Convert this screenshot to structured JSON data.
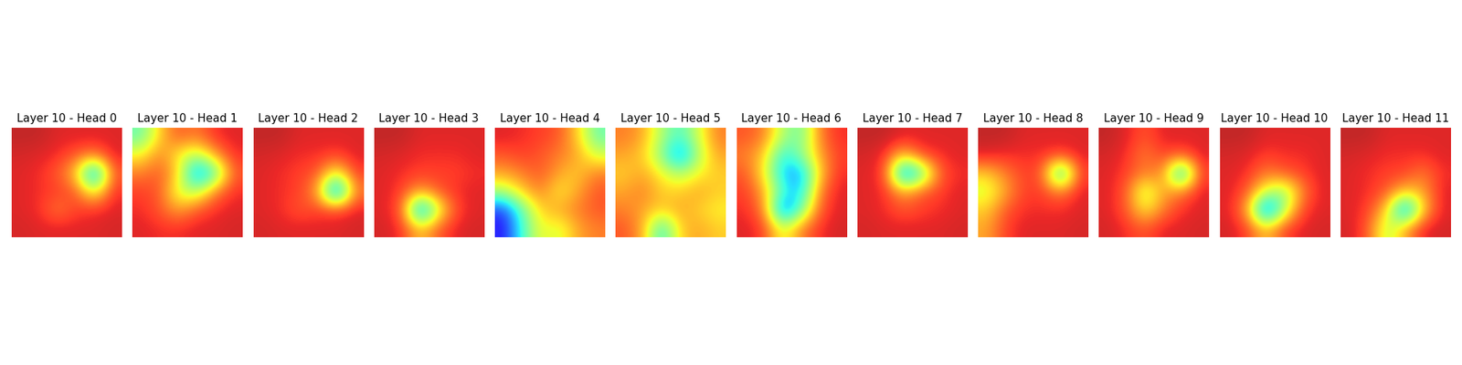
{
  "chart_data": {
    "type": "heatmap",
    "tick_labels": false,
    "color_range": [
      0,
      1
    ],
    "panels": [
      {
        "title": "Layer 10 - Head 0",
        "cells": [
          [
            0.95,
            0.95,
            0.92,
            0.92,
            0.92,
            0.92
          ],
          [
            0.93,
            0.92,
            0.9,
            0.85,
            0.8,
            0.92
          ],
          [
            0.92,
            0.9,
            0.85,
            0.7,
            0.15,
            0.85
          ],
          [
            0.92,
            0.9,
            0.88,
            0.85,
            0.6,
            0.9
          ],
          [
            0.92,
            0.9,
            0.8,
            0.88,
            0.9,
            0.92
          ],
          [
            0.93,
            0.92,
            0.92,
            0.92,
            0.92,
            0.93
          ]
        ]
      },
      {
        "title": "Layer 10 - Head 1",
        "cells": [
          [
            0.45,
            0.7,
            0.85,
            0.8,
            0.9,
            0.92
          ],
          [
            0.65,
            0.8,
            0.65,
            0.55,
            0.75,
            0.9
          ],
          [
            0.8,
            0.85,
            0.7,
            0.2,
            0.4,
            0.85
          ],
          [
            0.88,
            0.85,
            0.6,
            0.55,
            0.8,
            0.9
          ],
          [
            0.9,
            0.85,
            0.75,
            0.85,
            0.9,
            0.92
          ],
          [
            0.92,
            0.9,
            0.9,
            0.92,
            0.92,
            0.93
          ]
        ]
      },
      {
        "title": "Layer 10 - Head 2",
        "cells": [
          [
            0.95,
            0.95,
            0.92,
            0.92,
            0.92,
            0.92
          ],
          [
            0.93,
            0.92,
            0.9,
            0.9,
            0.88,
            0.92
          ],
          [
            0.92,
            0.9,
            0.88,
            0.85,
            0.6,
            0.88
          ],
          [
            0.92,
            0.9,
            0.88,
            0.75,
            0.1,
            0.8
          ],
          [
            0.92,
            0.9,
            0.85,
            0.88,
            0.88,
            0.92
          ],
          [
            0.93,
            0.92,
            0.92,
            0.92,
            0.92,
            0.93
          ]
        ]
      },
      {
        "title": "Layer 10 - Head 3",
        "cells": [
          [
            0.95,
            0.95,
            0.92,
            0.92,
            0.92,
            0.92
          ],
          [
            0.93,
            0.92,
            0.9,
            0.9,
            0.9,
            0.92
          ],
          [
            0.92,
            0.9,
            0.88,
            0.88,
            0.88,
            0.9
          ],
          [
            0.92,
            0.88,
            0.75,
            0.85,
            0.9,
            0.92
          ],
          [
            0.92,
            0.85,
            0.15,
            0.6,
            0.88,
            0.92
          ],
          [
            0.93,
            0.9,
            0.7,
            0.85,
            0.92,
            0.93
          ]
        ]
      },
      {
        "title": "Layer 10 - Head 4",
        "cells": [
          [
            0.92,
            0.9,
            0.88,
            0.85,
            0.7,
            0.45
          ],
          [
            0.85,
            0.88,
            0.85,
            0.8,
            0.75,
            0.6
          ],
          [
            0.75,
            0.8,
            0.85,
            0.75,
            0.7,
            0.8
          ],
          [
            0.55,
            0.7,
            0.8,
            0.65,
            0.75,
            0.85
          ],
          [
            0.15,
            0.45,
            0.7,
            0.75,
            0.8,
            0.85
          ],
          [
            0.1,
            0.4,
            0.65,
            0.6,
            0.75,
            0.8
          ]
        ]
      },
      {
        "title": "Layer 10 - Head 5",
        "cells": [
          [
            0.8,
            0.75,
            0.55,
            0.4,
            0.6,
            0.8
          ],
          [
            0.75,
            0.7,
            0.5,
            0.2,
            0.55,
            0.75
          ],
          [
            0.7,
            0.75,
            0.65,
            0.55,
            0.65,
            0.7
          ],
          [
            0.75,
            0.8,
            0.7,
            0.7,
            0.75,
            0.7
          ],
          [
            0.8,
            0.75,
            0.7,
            0.75,
            0.7,
            0.65
          ],
          [
            0.85,
            0.75,
            0.35,
            0.7,
            0.75,
            0.7
          ]
        ]
      },
      {
        "title": "Layer 10 - Head 6",
        "cells": [
          [
            0.85,
            0.8,
            0.55,
            0.45,
            0.8,
            0.9
          ],
          [
            0.8,
            0.7,
            0.35,
            0.5,
            0.75,
            0.88
          ],
          [
            0.85,
            0.65,
            0.3,
            0.25,
            0.7,
            0.9
          ],
          [
            0.88,
            0.75,
            0.4,
            0.3,
            0.8,
            0.92
          ],
          [
            0.9,
            0.8,
            0.15,
            0.45,
            0.85,
            0.92
          ],
          [
            0.92,
            0.88,
            0.6,
            0.8,
            0.9,
            0.93
          ]
        ]
      },
      {
        "title": "Layer 10 - Head 7",
        "cells": [
          [
            0.95,
            0.95,
            0.92,
            0.92,
            0.92,
            0.92
          ],
          [
            0.93,
            0.9,
            0.7,
            0.88,
            0.9,
            0.92
          ],
          [
            0.92,
            0.88,
            0.15,
            0.4,
            0.85,
            0.9
          ],
          [
            0.92,
            0.9,
            0.75,
            0.85,
            0.88,
            0.92
          ],
          [
            0.92,
            0.9,
            0.85,
            0.88,
            0.9,
            0.92
          ],
          [
            0.93,
            0.92,
            0.92,
            0.92,
            0.92,
            0.93
          ]
        ]
      },
      {
        "title": "Layer 10 - Head 8",
        "cells": [
          [
            0.95,
            0.95,
            0.92,
            0.92,
            0.92,
            0.92
          ],
          [
            0.92,
            0.9,
            0.9,
            0.9,
            0.88,
            0.92
          ],
          [
            0.7,
            0.8,
            0.88,
            0.85,
            0.25,
            0.88
          ],
          [
            0.6,
            0.75,
            0.88,
            0.88,
            0.8,
            0.92
          ],
          [
            0.7,
            0.85,
            0.9,
            0.9,
            0.9,
            0.92
          ],
          [
            0.75,
            0.88,
            0.92,
            0.92,
            0.92,
            0.93
          ]
        ]
      },
      {
        "title": "Layer 10 - Head 9",
        "cells": [
          [
            0.95,
            0.92,
            0.85,
            0.92,
            0.92,
            0.92
          ],
          [
            0.93,
            0.9,
            0.8,
            0.88,
            0.85,
            0.92
          ],
          [
            0.92,
            0.88,
            0.8,
            0.8,
            0.2,
            0.88
          ],
          [
            0.92,
            0.85,
            0.55,
            0.75,
            0.8,
            0.92
          ],
          [
            0.92,
            0.85,
            0.65,
            0.8,
            0.9,
            0.92
          ],
          [
            0.93,
            0.9,
            0.85,
            0.92,
            0.92,
            0.93
          ]
        ]
      },
      {
        "title": "Layer 10 - Head 10",
        "cells": [
          [
            0.95,
            0.95,
            0.92,
            0.92,
            0.92,
            0.92
          ],
          [
            0.93,
            0.92,
            0.88,
            0.9,
            0.9,
            0.92
          ],
          [
            0.92,
            0.9,
            0.8,
            0.85,
            0.88,
            0.92
          ],
          [
            0.92,
            0.85,
            0.6,
            0.5,
            0.8,
            0.92
          ],
          [
            0.92,
            0.75,
            0.1,
            0.55,
            0.88,
            0.92
          ],
          [
            0.93,
            0.88,
            0.7,
            0.88,
            0.92,
            0.93
          ]
        ]
      },
      {
        "title": "Layer 10 - Head 11",
        "cells": [
          [
            0.95,
            0.95,
            0.92,
            0.92,
            0.92,
            0.92
          ],
          [
            0.93,
            0.92,
            0.9,
            0.9,
            0.9,
            0.92
          ],
          [
            0.92,
            0.9,
            0.88,
            0.88,
            0.8,
            0.9
          ],
          [
            0.92,
            0.9,
            0.85,
            0.7,
            0.75,
            0.92
          ],
          [
            0.92,
            0.88,
            0.7,
            0.15,
            0.7,
            0.92
          ],
          [
            0.93,
            0.85,
            0.55,
            0.75,
            0.92,
            0.93
          ]
        ]
      }
    ]
  }
}
